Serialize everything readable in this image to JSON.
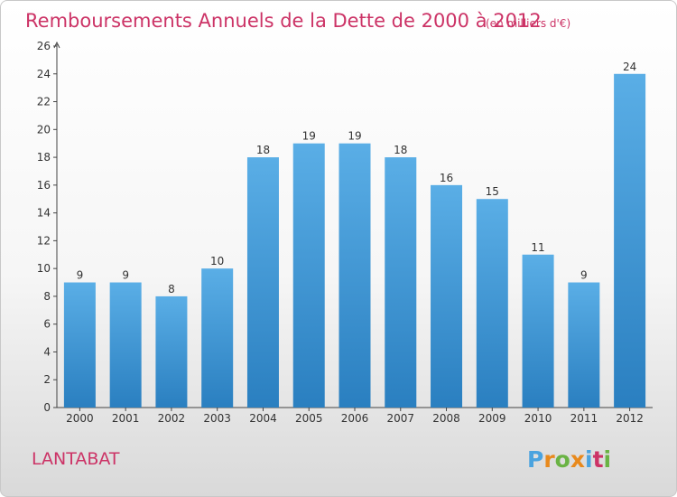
{
  "chart_data": {
    "type": "bar",
    "title": "Remboursements Annuels de la Dette de 2000 à 2012",
    "subtitle": "(en milliers d'€)",
    "categories": [
      "2000",
      "2001",
      "2002",
      "2003",
      "2004",
      "2005",
      "2006",
      "2007",
      "2008",
      "2009",
      "2010",
      "2011",
      "2012"
    ],
    "values": [
      9,
      9,
      8,
      10,
      18,
      19,
      19,
      18,
      16,
      15,
      11,
      9,
      24
    ],
    "ylim": [
      0,
      26
    ],
    "yticks": [
      0,
      2,
      4,
      6,
      8,
      10,
      12,
      14,
      16,
      18,
      20,
      22,
      24,
      26
    ],
    "xlabel": "",
    "ylabel": "",
    "grid": false,
    "bar_color": "#4a9fdf"
  },
  "commune": "LANTABAT",
  "logo": {
    "text": "Proxiti",
    "letter_colors": [
      "#4aa3df",
      "#e8891c",
      "#6ab344",
      "#e8891c",
      "#4aa3df",
      "#cc3366",
      "#6ab344"
    ]
  }
}
